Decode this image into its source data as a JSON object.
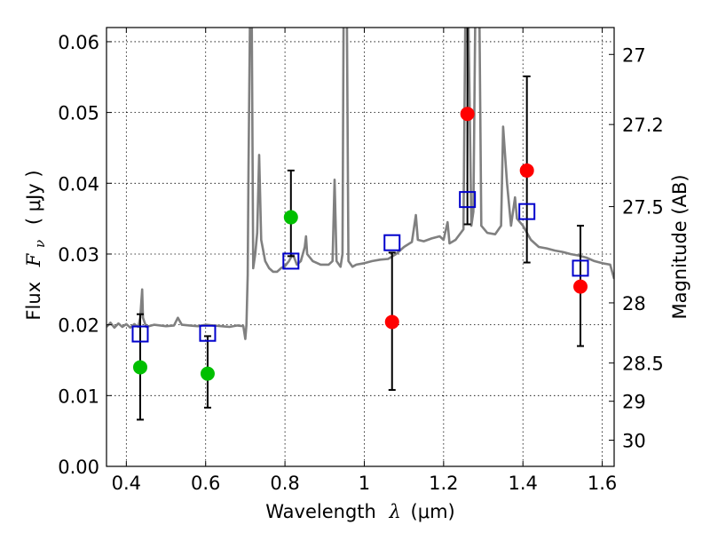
{
  "chart_data": {
    "type": "scatter",
    "xlabel_text": "Wavelength",
    "xlabel_symbol": "λ",
    "xlabel_unit": "(μm)",
    "ylabel_text": "Flux",
    "ylabel_symbol": "F",
    "ylabel_sub": "ν",
    "ylabel_unit": "( μJy )",
    "y2label": "Magnitude (AB)",
    "xlim": [
      0.35,
      1.63
    ],
    "ylim": [
      0.0,
      0.062
    ],
    "grid": true,
    "x_ticks": [
      0.4,
      0.6,
      0.8,
      1.0,
      1.2,
      1.4,
      1.6
    ],
    "x_tick_labels": [
      "0.4",
      "0.6",
      "0.8",
      "1",
      "1.2",
      "1.4",
      "1.6"
    ],
    "y_ticks": [
      0.0,
      0.01,
      0.02,
      0.03,
      0.04,
      0.05,
      0.06
    ],
    "y_tick_labels": [
      "0.00",
      "0.01",
      "0.02",
      "0.03",
      "0.04",
      "0.05",
      "0.06"
    ],
    "y2_ticks": [
      {
        "label": "27",
        "flux": 0.0582
      },
      {
        "label": "27.2",
        "flux": 0.0483
      },
      {
        "label": "27.5",
        "flux": 0.0367
      },
      {
        "label": "28",
        "flux": 0.0231
      },
      {
        "label": "28.5",
        "flux": 0.0146
      },
      {
        "label": "29",
        "flux": 0.0092
      },
      {
        "label": "30",
        "flux": 0.0037
      }
    ],
    "colors": {
      "spectrum": "#808080",
      "green": "#00bf00",
      "red": "#ff0000",
      "model": "#0000cc",
      "errorbar": "#000000",
      "grid": "#000000"
    },
    "spectrum": [
      [
        0.35,
        0.0197
      ],
      [
        0.36,
        0.0203
      ],
      [
        0.37,
        0.0196
      ],
      [
        0.38,
        0.0202
      ],
      [
        0.39,
        0.0197
      ],
      [
        0.4,
        0.0201
      ],
      [
        0.41,
        0.0196
      ],
      [
        0.42,
        0.0201
      ],
      [
        0.43,
        0.0197
      ],
      [
        0.435,
        0.021
      ],
      [
        0.44,
        0.025
      ],
      [
        0.442,
        0.021
      ],
      [
        0.45,
        0.0197
      ],
      [
        0.47,
        0.02
      ],
      [
        0.5,
        0.0198
      ],
      [
        0.52,
        0.0199
      ],
      [
        0.53,
        0.021
      ],
      [
        0.54,
        0.02
      ],
      [
        0.56,
        0.0199
      ],
      [
        0.58,
        0.0198
      ],
      [
        0.6,
        0.02
      ],
      [
        0.62,
        0.0199
      ],
      [
        0.64,
        0.0198
      ],
      [
        0.66,
        0.0197
      ],
      [
        0.68,
        0.0199
      ],
      [
        0.695,
        0.0198
      ],
      [
        0.7,
        0.018
      ],
      [
        0.703,
        0.02
      ],
      [
        0.706,
        0.027
      ],
      [
        0.708,
        0.042
      ],
      [
        0.712,
        0.065
      ],
      [
        0.716,
        0.065
      ],
      [
        0.72,
        0.028
      ],
      [
        0.725,
        0.03
      ],
      [
        0.73,
        0.033
      ],
      [
        0.735,
        0.044
      ],
      [
        0.74,
        0.032
      ],
      [
        0.75,
        0.029
      ],
      [
        0.76,
        0.028
      ],
      [
        0.77,
        0.0275
      ],
      [
        0.78,
        0.0275
      ],
      [
        0.79,
        0.028
      ],
      [
        0.8,
        0.0283
      ],
      [
        0.81,
        0.029
      ],
      [
        0.82,
        0.03
      ],
      [
        0.83,
        0.0285
      ],
      [
        0.84,
        0.029
      ],
      [
        0.85,
        0.031
      ],
      [
        0.853,
        0.0325
      ],
      [
        0.856,
        0.03
      ],
      [
        0.87,
        0.029
      ],
      [
        0.89,
        0.0285
      ],
      [
        0.91,
        0.0285
      ],
      [
        0.92,
        0.029
      ],
      [
        0.925,
        0.0405
      ],
      [
        0.93,
        0.029
      ],
      [
        0.94,
        0.0282
      ],
      [
        0.945,
        0.03
      ],
      [
        0.948,
        0.065
      ],
      [
        0.956,
        0.065
      ],
      [
        0.96,
        0.029
      ],
      [
        0.97,
        0.0282
      ],
      [
        0.98,
        0.0285
      ],
      [
        1.0,
        0.0287
      ],
      [
        1.02,
        0.029
      ],
      [
        1.04,
        0.0292
      ],
      [
        1.06,
        0.0293
      ],
      [
        1.08,
        0.03
      ],
      [
        1.1,
        0.031
      ],
      [
        1.12,
        0.0317
      ],
      [
        1.13,
        0.0355
      ],
      [
        1.135,
        0.032
      ],
      [
        1.15,
        0.0318
      ],
      [
        1.17,
        0.0322
      ],
      [
        1.19,
        0.0325
      ],
      [
        1.2,
        0.032
      ],
      [
        1.21,
        0.0345
      ],
      [
        1.215,
        0.0315
      ],
      [
        1.23,
        0.032
      ],
      [
        1.25,
        0.0335
      ],
      [
        1.255,
        0.065
      ],
      [
        1.262,
        0.065
      ],
      [
        1.27,
        0.034
      ],
      [
        1.275,
        0.036
      ],
      [
        1.28,
        0.065
      ],
      [
        1.29,
        0.065
      ],
      [
        1.295,
        0.034
      ],
      [
        1.31,
        0.033
      ],
      [
        1.33,
        0.0328
      ],
      [
        1.345,
        0.034
      ],
      [
        1.35,
        0.048
      ],
      [
        1.36,
        0.04
      ],
      [
        1.37,
        0.034
      ],
      [
        1.38,
        0.038
      ],
      [
        1.385,
        0.035
      ],
      [
        1.4,
        0.034
      ],
      [
        1.42,
        0.032
      ],
      [
        1.44,
        0.031
      ],
      [
        1.46,
        0.0308
      ],
      [
        1.48,
        0.0305
      ],
      [
        1.5,
        0.0303
      ],
      [
        1.52,
        0.03
      ],
      [
        1.54,
        0.0298
      ],
      [
        1.56,
        0.0295
      ],
      [
        1.58,
        0.029
      ],
      [
        1.6,
        0.0287
      ],
      [
        1.62,
        0.0285
      ],
      [
        1.63,
        0.0265
      ]
    ],
    "points": [
      {
        "x": 0.435,
        "y": 0.014,
        "color": "green",
        "err_lo": 0.0066,
        "err_hi": 0.0215
      },
      {
        "x": 0.605,
        "y": 0.0131,
        "color": "green",
        "err_lo": 0.0083,
        "err_hi": 0.0184
      },
      {
        "x": 0.815,
        "y": 0.0352,
        "color": "green",
        "err_lo": 0.0297,
        "err_hi": 0.0418
      },
      {
        "x": 1.07,
        "y": 0.0204,
        "color": "red",
        "err_lo": 0.0108,
        "err_hi": 0.0302
      },
      {
        "x": 1.26,
        "y": 0.0498,
        "color": "red",
        "err_lo": 0.0342,
        "err_hi": 0.065
      },
      {
        "x": 1.41,
        "y": 0.0418,
        "color": "red",
        "err_lo": 0.0288,
        "err_hi": 0.0551
      },
      {
        "x": 1.545,
        "y": 0.0254,
        "color": "red",
        "err_lo": 0.017,
        "err_hi": 0.034
      }
    ],
    "model_points": [
      {
        "x": 0.435,
        "y": 0.0187
      },
      {
        "x": 0.605,
        "y": 0.0188
      },
      {
        "x": 0.815,
        "y": 0.029
      },
      {
        "x": 1.07,
        "y": 0.0316
      },
      {
        "x": 1.26,
        "y": 0.0377
      },
      {
        "x": 1.41,
        "y": 0.036
      },
      {
        "x": 1.545,
        "y": 0.028
      }
    ]
  }
}
